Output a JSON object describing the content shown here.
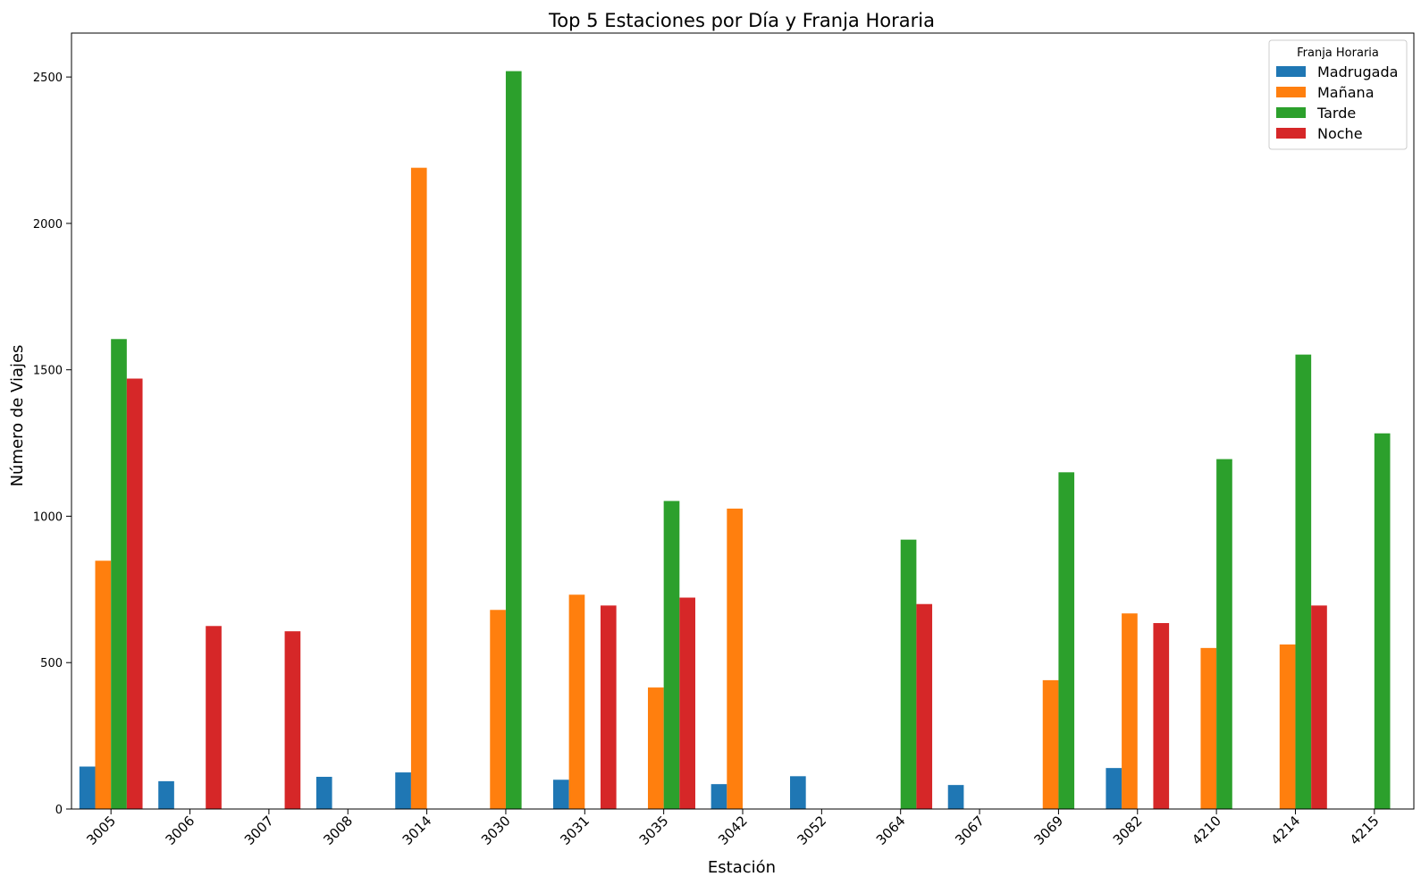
{
  "chart_data": {
    "type": "bar",
    "title": "Top 5 Estaciones por Día y Franja Horaria",
    "xlabel": "Estación",
    "ylabel": "Número de Viajes",
    "ylim": [
      0,
      2650
    ],
    "yticks": [
      0,
      500,
      1000,
      1500,
      2000,
      2500
    ],
    "grid": false,
    "legend_title": "Franja Horaria",
    "legend_position": "top-right",
    "categories": [
      "3005",
      "3006",
      "3007",
      "3008",
      "3014",
      "3030",
      "3031",
      "3035",
      "3042",
      "3052",
      "3064",
      "3067",
      "3069",
      "3082",
      "4210",
      "4214",
      "4215"
    ],
    "series": [
      {
        "name": "Madrugada",
        "color": "#1f77b4",
        "values": [
          145,
          95,
          null,
          110,
          125,
          null,
          100,
          null,
          85,
          112,
          null,
          82,
          null,
          140,
          null,
          null,
          null
        ]
      },
      {
        "name": "Mañana",
        "color": "#ff7f0e",
        "values": [
          848,
          null,
          null,
          null,
          2190,
          680,
          732,
          415,
          1026,
          null,
          null,
          null,
          440,
          668,
          550,
          562,
          null
        ]
      },
      {
        "name": "Tarde",
        "color": "#2ca02c",
        "values": [
          1605,
          null,
          null,
          null,
          null,
          2520,
          null,
          1052,
          null,
          null,
          920,
          null,
          1150,
          null,
          1195,
          1552,
          1283
        ]
      },
      {
        "name": "Noche",
        "color": "#d62728",
        "values": [
          1470,
          625,
          607,
          null,
          null,
          null,
          695,
          722,
          null,
          null,
          700,
          null,
          null,
          635,
          null,
          695,
          null
        ]
      }
    ]
  }
}
